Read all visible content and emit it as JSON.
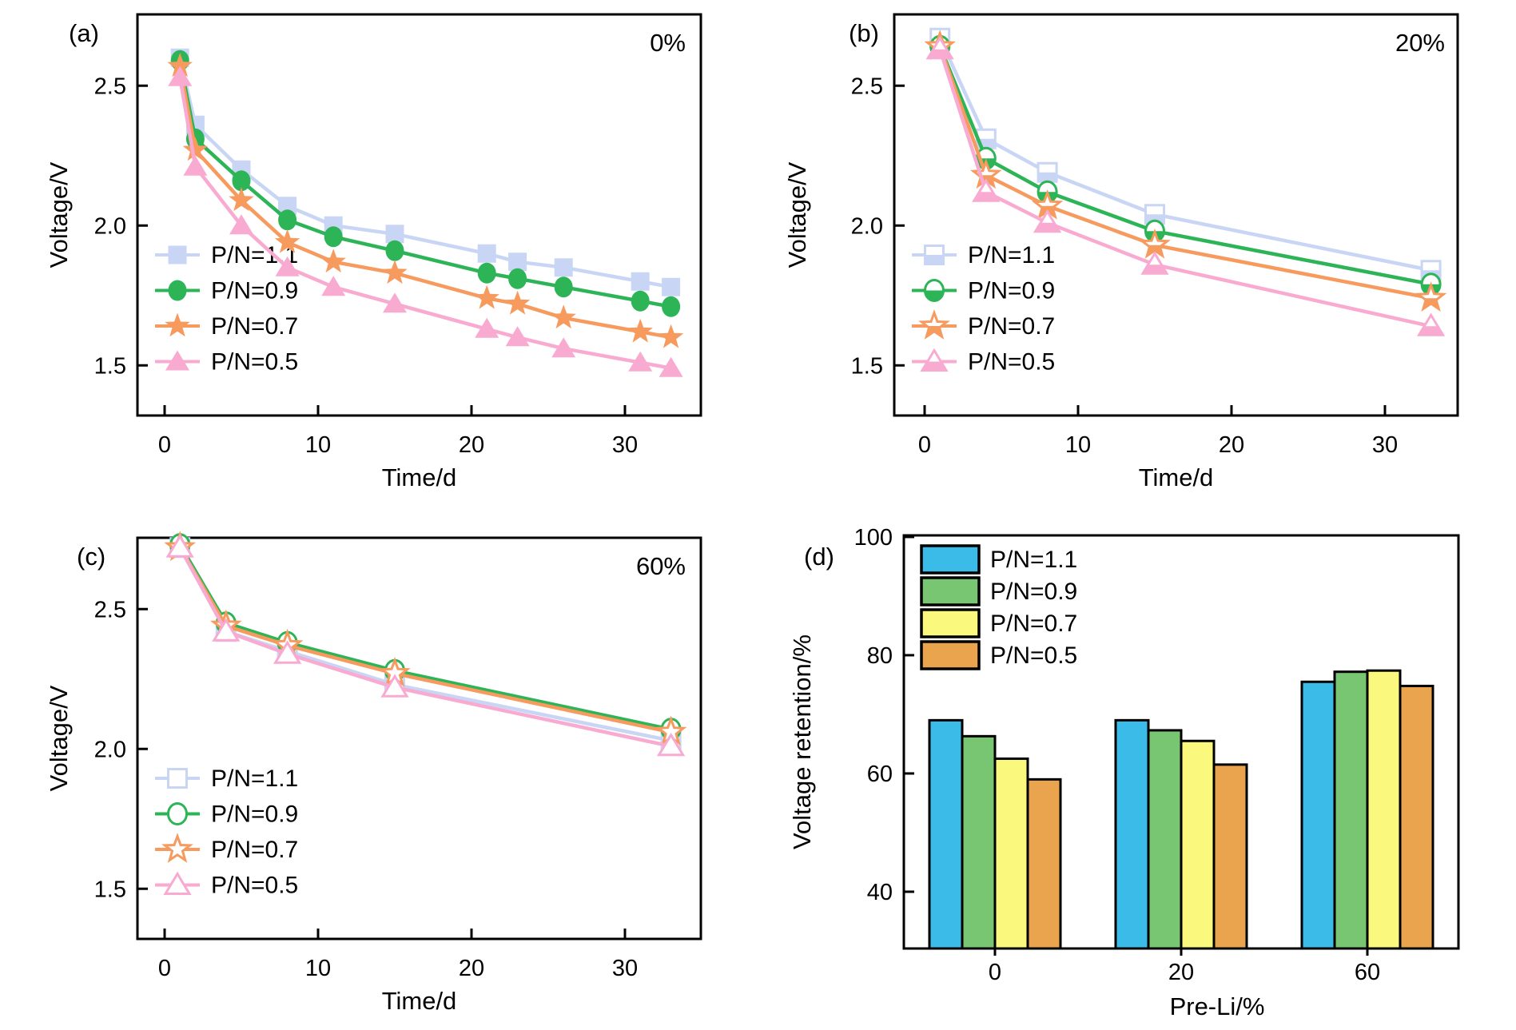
{
  "figure": {
    "background": "#ffffff",
    "axis_color": "#000000",
    "layout": {
      "rows": 2,
      "cols": 2
    }
  },
  "chart_data": [
    {
      "id": "a",
      "type": "line",
      "panel_label": "(a)",
      "annotation": "0%",
      "xlabel": "Time/d",
      "ylabel": "Voltage/V",
      "xticks": [
        "0",
        "10",
        "20",
        "30"
      ],
      "yticks": [
        "1.5",
        "2.0",
        "2.5"
      ],
      "xlim": [
        -1.8,
        34.9
      ],
      "ylim": [
        1.32,
        2.76
      ],
      "grid": false,
      "legend_position": "lower-left",
      "marker_style": "filled",
      "x": [
        1,
        2,
        5,
        8,
        11,
        15,
        21,
        23,
        26,
        31,
        33
      ],
      "series": [
        {
          "name": "P/N=1.1",
          "marker": "square",
          "color": "#c8d5f4",
          "values": [
            2.6,
            2.36,
            2.2,
            2.07,
            2.0,
            1.97,
            1.9,
            1.87,
            1.85,
            1.8,
            1.78
          ]
        },
        {
          "name": "P/N=0.9",
          "marker": "circle",
          "color": "#2cb457",
          "values": [
            2.59,
            2.31,
            2.16,
            2.02,
            1.96,
            1.91,
            1.83,
            1.81,
            1.78,
            1.73,
            1.71
          ]
        },
        {
          "name": "P/N=0.7",
          "marker": "star",
          "color": "#f79a5e",
          "values": [
            2.57,
            2.27,
            2.09,
            1.94,
            1.87,
            1.83,
            1.74,
            1.72,
            1.67,
            1.62,
            1.6
          ]
        },
        {
          "name": "P/N=0.5",
          "marker": "triangle",
          "color": "#f9aad1",
          "values": [
            2.53,
            2.21,
            2.0,
            1.85,
            1.78,
            1.72,
            1.63,
            1.6,
            1.56,
            1.51,
            1.49
          ]
        }
      ]
    },
    {
      "id": "b",
      "type": "line",
      "panel_label": "(b)",
      "annotation": "20%",
      "xlabel": "Time/d",
      "ylabel": "Voltage/V",
      "xticks": [
        "0",
        "10",
        "20",
        "30"
      ],
      "yticks": [
        "1.5",
        "2.0",
        "2.5"
      ],
      "xlim": [
        -1.8,
        34.9
      ],
      "ylim": [
        1.32,
        2.76
      ],
      "grid": false,
      "legend_position": "lower-left",
      "marker_style": "half-filled",
      "x": [
        1,
        4,
        8,
        15,
        33
      ],
      "series": [
        {
          "name": "P/N=1.1",
          "marker": "square",
          "color": "#c8d5f4",
          "values": [
            2.67,
            2.31,
            2.19,
            2.04,
            1.84
          ]
        },
        {
          "name": "P/N=0.9",
          "marker": "circle",
          "color": "#2cb457",
          "values": [
            2.64,
            2.24,
            2.12,
            1.98,
            1.79
          ]
        },
        {
          "name": "P/N=0.7",
          "marker": "star",
          "color": "#f79a5e",
          "values": [
            2.64,
            2.18,
            2.07,
            1.93,
            1.74
          ]
        },
        {
          "name": "P/N=0.5",
          "marker": "triangle",
          "color": "#f9aad1",
          "values": [
            2.63,
            2.12,
            2.01,
            1.86,
            1.64
          ]
        }
      ]
    },
    {
      "id": "c",
      "type": "line",
      "panel_label": "(c)",
      "annotation": "60%",
      "xlabel": "Time/d",
      "ylabel": "Voltage/V",
      "xticks": [
        "0",
        "10",
        "20",
        "30"
      ],
      "yticks": [
        "1.5",
        "2.0",
        "2.5"
      ],
      "xlim": [
        -1.8,
        34.9
      ],
      "ylim": [
        1.32,
        2.76
      ],
      "grid": false,
      "legend_position": "lower-left",
      "marker_style": "open",
      "x": [
        1,
        4,
        8,
        15,
        33
      ],
      "series": [
        {
          "name": "P/N=1.1",
          "marker": "square",
          "color": "#c8d5f4",
          "values": [
            2.72,
            2.42,
            2.35,
            2.23,
            2.03
          ]
        },
        {
          "name": "P/N=0.9",
          "marker": "circle",
          "color": "#2cb457",
          "values": [
            2.73,
            2.45,
            2.38,
            2.28,
            2.07
          ]
        },
        {
          "name": "P/N=0.7",
          "marker": "star",
          "color": "#f79a5e",
          "values": [
            2.72,
            2.44,
            2.37,
            2.27,
            2.06
          ]
        },
        {
          "name": "P/N=0.5",
          "marker": "triangle",
          "color": "#f9aad1",
          "values": [
            2.72,
            2.42,
            2.34,
            2.22,
            2.01
          ]
        }
      ]
    },
    {
      "id": "d",
      "type": "bar",
      "panel_label": "(d)",
      "xlabel": "Pre-Li/%",
      "ylabel": "Voltage retention/%",
      "yticks": [
        "40",
        "60",
        "80",
        "100"
      ],
      "ylim": [
        30,
        100
      ],
      "grid": false,
      "legend_position": "upper-left",
      "categories": [
        "0",
        "20",
        "60"
      ],
      "series": [
        {
          "name": "P/N=1.1",
          "color": "#3bbce8",
          "values": [
            69.0,
            69.0,
            75.5
          ]
        },
        {
          "name": "P/N=0.9",
          "color": "#78c671",
          "values": [
            66.3,
            67.3,
            77.2
          ]
        },
        {
          "name": "P/N=0.7",
          "color": "#fbf97d",
          "values": [
            62.5,
            65.5,
            77.4
          ]
        },
        {
          "name": "P/N=0.5",
          "color": "#eba44e",
          "values": [
            59.0,
            61.5,
            74.8
          ]
        }
      ]
    }
  ]
}
